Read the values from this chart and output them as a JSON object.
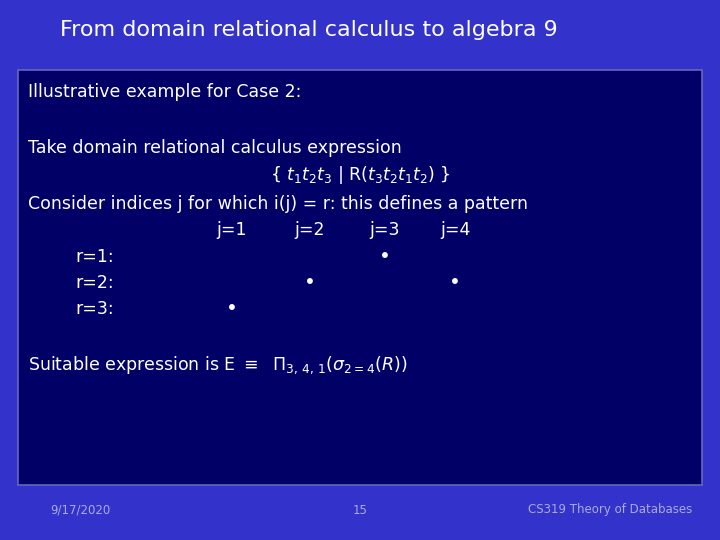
{
  "title": "From domain relational calculus to algebra 9",
  "bg_color": "#3333CC",
  "box_color": "#000066",
  "title_color": "#FFFFFF",
  "content_color": "#FFFFFF",
  "footer_color": "#AAAADD",
  "footer_left": "9/17/2020",
  "footer_center": "15",
  "footer_right": "CS319 Theory of Databases",
  "line1": "Illustrative example for Case 2:",
  "line2": "Take domain relational calculus expression",
  "line4": "Consider indices j for which i(j) = r: this defines a pattern",
  "line6": "r=1:",
  "line7": "r=2:",
  "line8": "r=3:"
}
